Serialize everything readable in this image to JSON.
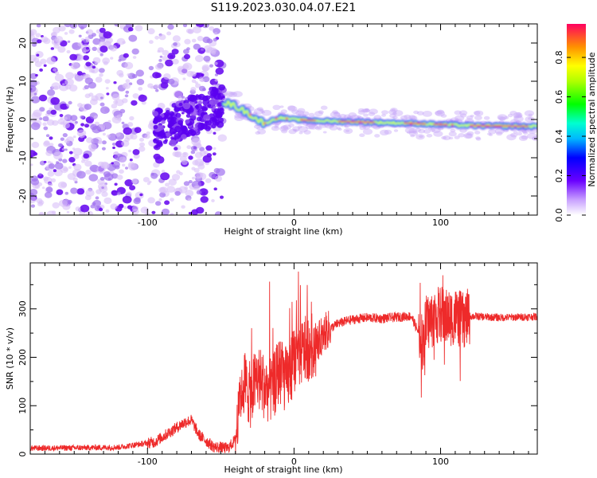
{
  "title": "S119.2023.030.04.07.E21",
  "chart_data": [
    {
      "type": "heatmap",
      "xlabel": "Height of straight line (km)",
      "ylabel": "Frequency (Hz)",
      "xlim": [
        -180,
        166
      ],
      "ylim": [
        -25,
        25
      ],
      "xticks": [
        -100,
        0,
        100
      ],
      "yticks": [
        -20,
        -10,
        0,
        10,
        20
      ],
      "colorbar": {
        "label": "Normalized spectral amplitude",
        "range": [
          0,
          0.97
        ],
        "ticks": [
          0.0,
          0.2,
          0.4,
          0.6,
          0.8
        ]
      },
      "ridge": {
        "description_points_x": [
          -48,
          -40,
          -33,
          -25,
          -20,
          -10,
          0,
          10,
          30,
          60,
          80,
          100,
          120,
          166
        ],
        "description_points_y": [
          4.5,
          3.5,
          2,
          0,
          -1,
          0.5,
          0,
          -0.2,
          -0.5,
          -0.8,
          -1,
          -1.3,
          -1.6,
          -1.8
        ]
      }
    },
    {
      "type": "line",
      "xlabel": "Height of straight line (km)",
      "ylabel": "SNR (10 * v/v)",
      "xlim": [
        -180,
        166
      ],
      "ylim": [
        0,
        395
      ],
      "xticks": [
        -100,
        0,
        100
      ],
      "yticks": [
        0,
        100,
        200,
        300
      ],
      "color": "#ee2a2a",
      "series": [
        {
          "x": [
            -180,
            -120,
            -95,
            -85,
            -75,
            -70,
            -65,
            -55,
            -45,
            -40,
            -37,
            -34,
            -30,
            -25,
            -20,
            -15,
            -10,
            -5,
            0,
            5,
            10,
            15,
            20,
            25,
            30,
            40,
            50,
            60,
            70,
            80,
            88,
            90,
            95,
            100,
            105,
            110,
            115,
            120,
            140,
            166
          ],
          "y": [
            12,
            14,
            25,
            45,
            65,
            70,
            40,
            15,
            12,
            30,
            110,
            150,
            120,
            160,
            140,
            130,
            175,
            150,
            195,
            210,
            220,
            225,
            250,
            260,
            270,
            278,
            282,
            280,
            283,
            285,
            230,
            270,
            280,
            290,
            280,
            285,
            275,
            285,
            282,
            284
          ]
        }
      ]
    }
  ]
}
